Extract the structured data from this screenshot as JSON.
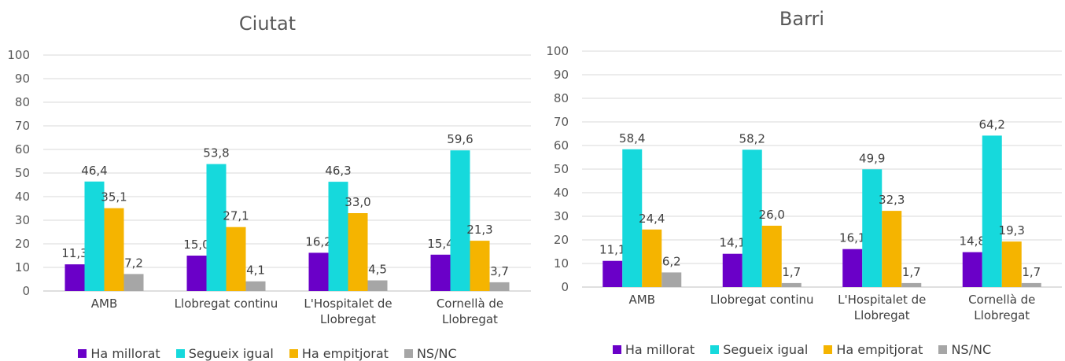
{
  "chart_data": [
    {
      "type": "bar",
      "title": "Ciutat",
      "categories": [
        [
          "AMB"
        ],
        [
          "Llobregat continu"
        ],
        [
          "L'Hospitalet de",
          "Llobregat"
        ],
        [
          "Cornellà de",
          "Llobregat"
        ]
      ],
      "series": [
        {
          "name": "Ha millorat",
          "color": "#6a00c8",
          "values": [
            11.3,
            15.0,
            16.2,
            15.4
          ],
          "labels": [
            "11,3",
            "15,0",
            "16,2",
            "15,4"
          ]
        },
        {
          "name": "Segueix igual",
          "color": "#16d9dc",
          "values": [
            46.4,
            53.8,
            46.3,
            59.6
          ],
          "labels": [
            "46,4",
            "53,8",
            "46,3",
            "59,6"
          ]
        },
        {
          "name": "Ha empitjorat",
          "color": "#f5b400",
          "values": [
            35.1,
            27.1,
            33.0,
            21.3
          ],
          "labels": [
            "35,1",
            "27,1",
            "33,0",
            "21,3"
          ]
        },
        {
          "name": "NS/NC",
          "color": "#a6a6a6",
          "values": [
            7.2,
            4.1,
            4.5,
            3.7
          ],
          "labels": [
            "7,2",
            "4,1",
            "4,5",
            "3,7"
          ]
        }
      ],
      "y_ticks": [
        "0",
        "10",
        "20",
        "30",
        "40",
        "50",
        "60",
        "70",
        "80",
        "90",
        "100"
      ],
      "ylim": [
        0,
        100
      ],
      "grid": true,
      "legend": "bottom"
    },
    {
      "type": "bar",
      "title": "Barri",
      "categories": [
        [
          "AMB"
        ],
        [
          "Llobregat continu"
        ],
        [
          "L'Hospitalet de",
          "Llobregat"
        ],
        [
          "Cornellà de",
          "Llobregat"
        ]
      ],
      "series": [
        {
          "name": "Ha millorat",
          "color": "#6a00c8",
          "values": [
            11.1,
            14.1,
            16.1,
            14.8
          ],
          "labels": [
            "11,1",
            "14,1",
            "16,1",
            "14,8"
          ]
        },
        {
          "name": "Segueix igual",
          "color": "#16d9dc",
          "values": [
            58.4,
            58.2,
            49.9,
            64.2
          ],
          "labels": [
            "58,4",
            "58,2",
            "49,9",
            "64,2"
          ]
        },
        {
          "name": "Ha empitjorat",
          "color": "#f5b400",
          "values": [
            24.4,
            26.0,
            32.3,
            19.3
          ],
          "labels": [
            "24,4",
            "26,0",
            "32,3",
            "19,3"
          ]
        },
        {
          "name": "NS/NC",
          "color": "#a6a6a6",
          "values": [
            6.2,
            1.7,
            1.7,
            1.7
          ],
          "labels": [
            "6,2",
            "1,7",
            "1,7",
            "1,7"
          ]
        }
      ],
      "y_ticks": [
        "0",
        "10",
        "20",
        "30",
        "40",
        "50",
        "60",
        "70",
        "80",
        "90",
        "100"
      ],
      "ylim": [
        0,
        100
      ],
      "grid": true,
      "legend": "bottom"
    }
  ]
}
